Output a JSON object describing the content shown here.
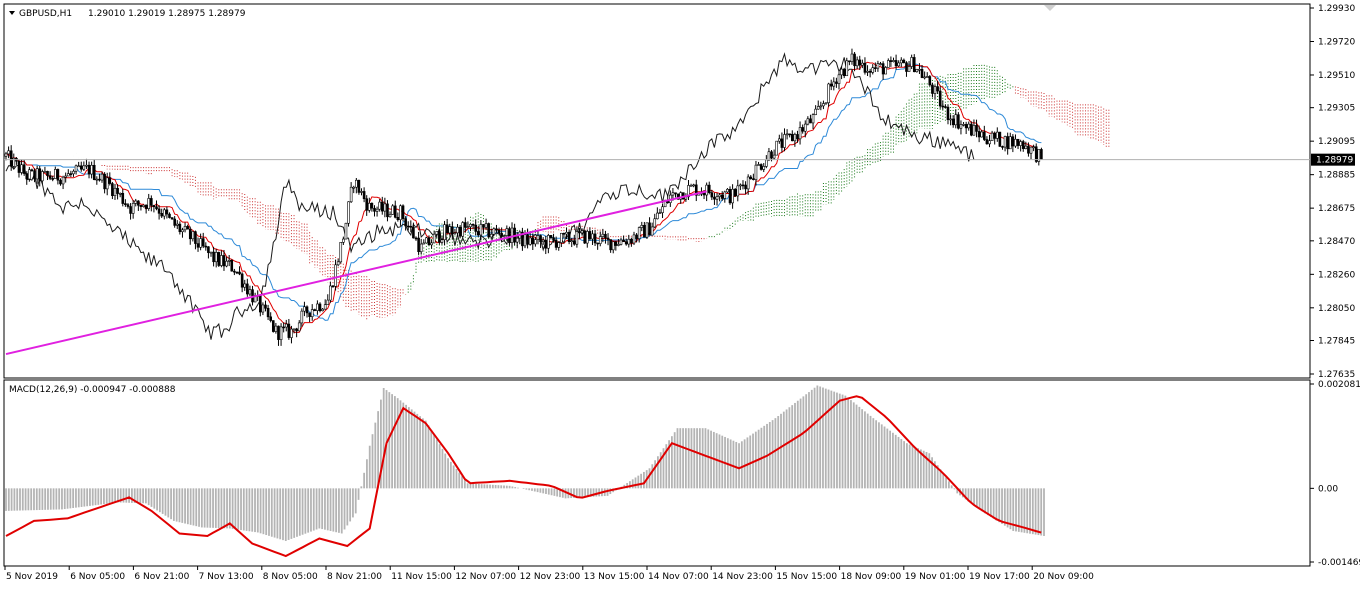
{
  "header": {
    "symbol_label": "GBPUSD,H1",
    "ohlc": "1.29010 1.29019 1.28975 1.28979",
    "indicator_label": "MACD(12,26,9) -0.000947 -0.000888"
  },
  "colors": {
    "background": "#ffffff",
    "grid_line": "#c0c0c0",
    "candle": "#000000",
    "kumo_bear": "#cc3333",
    "kumo_bull": "#1a7a1a",
    "tenkan": "#e00000",
    "kijun": "#2e8ad8",
    "chikou": "#1a1a1a",
    "trendline": "#e020e0",
    "macd_hist": "#b4b4b4",
    "macd_signal": "#e00000",
    "current_price_bg": "#000000"
  },
  "chart_data": [
    {
      "type": "candlestick",
      "title": "GBPUSD,H1",
      "y_ticks": [
        "1.29930",
        "1.29720",
        "1.29510",
        "1.29305",
        "1.29095",
        "1.28885",
        "1.28675",
        "1.28470",
        "1.28260",
        "1.28050",
        "1.27845",
        "1.27635"
      ],
      "ylim": [
        1.27635,
        1.2993
      ],
      "current_price": "1.28979",
      "current_price_value": 1.28979,
      "x_tick_labels": [
        "5 Nov 2019",
        "6 Nov 05:00",
        "6 Nov 21:00",
        "7 Nov 13:00",
        "8 Nov 05:00",
        "8 Nov 21:00",
        "11 Nov 15:00",
        "12 Nov 07:00",
        "12 Nov 23:00",
        "13 Nov 15:00",
        "14 Nov 07:00",
        "14 Nov 23:00",
        "15 Nov 15:00",
        "18 Nov 09:00",
        "19 Nov 01:00",
        "19 Nov 17:00",
        "20 Nov 09:00"
      ],
      "close_path": [
        [
          0,
          1.29
        ],
        [
          8,
          1.2888
        ],
        [
          16,
          1.2887
        ],
        [
          24,
          1.2888
        ],
        [
          32,
          1.2892
        ],
        [
          40,
          1.2882
        ],
        [
          48,
          1.2868
        ],
        [
          56,
          1.2872
        ],
        [
          64,
          1.2858
        ],
        [
          72,
          1.2848
        ],
        [
          80,
          1.2836
        ],
        [
          88,
          1.283
        ],
        [
          96,
          1.281
        ],
        [
          104,
          1.279
        ],
        [
          110,
          1.279
        ],
        [
          116,
          1.2803
        ],
        [
          124,
          1.281
        ],
        [
          130,
          1.285
        ],
        [
          134,
          1.2885
        ],
        [
          140,
          1.2868
        ],
        [
          146,
          1.2866
        ],
        [
          152,
          1.2865
        ],
        [
          160,
          1.2842
        ],
        [
          168,
          1.2852
        ],
        [
          176,
          1.2855
        ],
        [
          184,
          1.2853
        ],
        [
          192,
          1.2852
        ],
        [
          200,
          1.2847
        ],
        [
          208,
          1.2846
        ],
        [
          216,
          1.2848
        ],
        [
          224,
          1.285
        ],
        [
          232,
          1.2846
        ],
        [
          240,
          1.2848
        ],
        [
          248,
          1.2855
        ],
        [
          256,
          1.2875
        ],
        [
          264,
          1.288
        ],
        [
          272,
          1.2878
        ],
        [
          280,
          1.2875
        ],
        [
          288,
          1.289
        ],
        [
          296,
          1.2905
        ],
        [
          304,
          1.2913
        ],
        [
          312,
          1.2925
        ],
        [
          320,
          1.295
        ],
        [
          326,
          1.296
        ],
        [
          334,
          1.2955
        ],
        [
          342,
          1.2956
        ],
        [
          350,
          1.2958
        ],
        [
          356,
          1.2945
        ],
        [
          362,
          1.2928
        ],
        [
          370,
          1.2918
        ],
        [
          378,
          1.2912
        ],
        [
          384,
          1.291
        ],
        [
          392,
          1.2908
        ],
        [
          400,
          1.2898
        ]
      ],
      "trendline": {
        "from": [
          0,
          1.2776
        ],
        "to": [
          270,
          1.2878
        ]
      }
    },
    {
      "type": "bar",
      "title": "MACD(12,26,9)",
      "macd_main": -0.000947,
      "macd_signal": -0.000888,
      "y_ticks": [
        "0.002081",
        "0.00",
        "-0.001469"
      ],
      "ylim": [
        -0.001469,
        0.002081
      ],
      "histogram": [
        [
          0,
          -0.00045
        ],
        [
          20,
          -0.00042
        ],
        [
          40,
          -0.00028
        ],
        [
          50,
          -0.0003
        ],
        [
          60,
          -0.00065
        ],
        [
          70,
          -0.00078
        ],
        [
          80,
          -0.0008
        ],
        [
          90,
          -0.00088
        ],
        [
          100,
          -0.00105
        ],
        [
          112,
          -0.0008
        ],
        [
          120,
          -0.0009
        ],
        [
          125,
          -0.0005
        ],
        [
          130,
          0.00085
        ],
        [
          135,
          0.002
        ],
        [
          140,
          0.0018
        ],
        [
          150,
          0.00135
        ],
        [
          158,
          0.0006
        ],
        [
          165,
          0.0001
        ],
        [
          180,
          5e-05
        ],
        [
          200,
          -0.0002
        ],
        [
          215,
          -0.00015
        ],
        [
          230,
          0.0004
        ],
        [
          240,
          0.0012
        ],
        [
          250,
          0.0012
        ],
        [
          262,
          0.0009
        ],
        [
          275,
          0.0014
        ],
        [
          290,
          0.00205
        ],
        [
          300,
          0.00185
        ],
        [
          310,
          0.0014
        ],
        [
          322,
          0.0009
        ],
        [
          330,
          0.0007
        ],
        [
          340,
          -0.0001
        ],
        [
          350,
          -0.0005
        ],
        [
          360,
          -0.00085
        ],
        [
          371,
          -0.00095
        ]
      ],
      "signal_path": [
        [
          0,
          -0.00095
        ],
        [
          10,
          -0.00065
        ],
        [
          22,
          -0.0006
        ],
        [
          35,
          -0.00035
        ],
        [
          44,
          -0.00018
        ],
        [
          52,
          -0.00045
        ],
        [
          62,
          -0.0009
        ],
        [
          72,
          -0.00095
        ],
        [
          80,
          -0.0007
        ],
        [
          88,
          -0.0011
        ],
        [
          100,
          -0.00135
        ],
        [
          112,
          -0.001
        ],
        [
          122,
          -0.00115
        ],
        [
          130,
          -0.0008
        ],
        [
          136,
          0.0009
        ],
        [
          142,
          0.0016
        ],
        [
          150,
          0.0013
        ],
        [
          158,
          0.0007
        ],
        [
          165,
          0.0001
        ],
        [
          180,
          0.00015
        ],
        [
          195,
          5e-05
        ],
        [
          205,
          -0.0002
        ],
        [
          215,
          -5e-05
        ],
        [
          228,
          0.0001
        ],
        [
          238,
          0.0009
        ],
        [
          250,
          0.00065
        ],
        [
          262,
          0.0004
        ],
        [
          272,
          0.00065
        ],
        [
          285,
          0.0011
        ],
        [
          298,
          0.00175
        ],
        [
          305,
          0.00185
        ],
        [
          315,
          0.0014
        ],
        [
          325,
          0.0008
        ],
        [
          335,
          0.0003
        ],
        [
          345,
          -0.0003
        ],
        [
          355,
          -0.00065
        ],
        [
          365,
          -0.0008
        ],
        [
          371,
          -0.0009
        ]
      ]
    }
  ]
}
